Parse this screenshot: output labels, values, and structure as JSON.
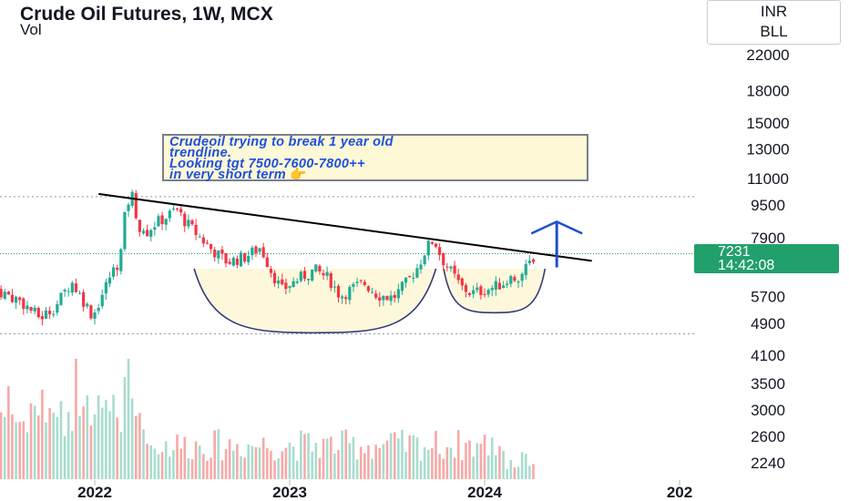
{
  "header": {
    "title": "Crude Oil Futures, 1W, MCX",
    "volume_label": "Vol"
  },
  "corner": {
    "currency": "INR",
    "symbol_box": "BLL"
  },
  "annotation": {
    "lines": [
      "Crudeoil trying to break 1 year old",
      "trendline.",
      "Looking tgt 7500-7600-7800++",
      "in very short term"
    ],
    "emoji": "👉"
  },
  "last_price": {
    "value": "7231",
    "countdown": "14:42:08",
    "color": "#22a06b"
  },
  "colors": {
    "up": "#22ab94",
    "down": "#f23645",
    "vol_up": "#a8dccf",
    "vol_down": "#f7a9a7",
    "trendline": "#000000",
    "cup_fill": "#fdf8dc",
    "cup_stroke": "#353a7a",
    "arrow": "#1f4fd1",
    "dotted": "#9598a1"
  },
  "chart_data": {
    "type": "candlestick",
    "title": "Crude Oil Futures, 1W, MCX",
    "price_axis": {
      "scale": "log",
      "ticks": [
        22000,
        18000,
        15000,
        13000,
        11000,
        9500,
        7900,
        5700,
        4900,
        4100,
        3500,
        3000,
        2600,
        2240
      ]
    },
    "time_axis": {
      "ticks": [
        "2022",
        "2023",
        "2024",
        "202"
      ],
      "tick_x": [
        2022.0,
        2023.0,
        2024.0,
        2025.0
      ]
    },
    "last_price": 7231,
    "horizontal_levels": [
      9950,
      4620
    ],
    "trendline": {
      "from": {
        "x": 2022.02,
        "price": 10100
      },
      "to": {
        "x": 2024.55,
        "price": 6950
      }
    },
    "projection_arrow": {
      "x": 2024.37,
      "from_price": 6700,
      "to_price": 8650
    },
    "patterns": [
      {
        "name": "cup",
        "x_start": 2022.51,
        "x_end": 2023.75,
        "top_price": 6650,
        "bottom_price": 4650
      },
      {
        "name": "handle",
        "x_start": 2023.79,
        "x_end": 2024.31,
        "top_price": 6650,
        "bottom_price": 5200
      }
    ],
    "series": [
      {
        "name": "Crude Oil Futures",
        "key_points": [
          [
            2021.5,
            5900
          ],
          [
            2021.62,
            5550
          ],
          [
            2021.72,
            5050
          ],
          [
            2021.8,
            5400
          ],
          [
            2021.88,
            6200
          ],
          [
            2021.96,
            5400
          ],
          [
            2021.99,
            5100
          ],
          [
            2022.02,
            5500
          ],
          [
            2022.08,
            6400
          ],
          [
            2022.13,
            7000
          ],
          [
            2022.16,
            9400
          ],
          [
            2022.19,
            10100
          ],
          [
            2022.24,
            7900
          ],
          [
            2022.3,
            8500
          ],
          [
            2022.37,
            8900
          ],
          [
            2022.42,
            9300
          ],
          [
            2022.46,
            8700
          ],
          [
            2022.51,
            8200
          ],
          [
            2022.6,
            7400
          ],
          [
            2022.68,
            6900
          ],
          [
            2022.77,
            7100
          ],
          [
            2022.85,
            7500
          ],
          [
            2022.91,
            6500
          ],
          [
            2022.96,
            5900
          ],
          [
            2023.05,
            6300
          ],
          [
            2023.13,
            6600
          ],
          [
            2023.2,
            6300
          ],
          [
            2023.26,
            5700
          ],
          [
            2023.32,
            5950
          ],
          [
            2023.38,
            6150
          ],
          [
            2023.45,
            5750
          ],
          [
            2023.53,
            5650
          ],
          [
            2023.6,
            6150
          ],
          [
            2023.66,
            6750
          ],
          [
            2023.7,
            7450
          ],
          [
            2023.74,
            7850
          ],
          [
            2023.78,
            7050
          ],
          [
            2023.84,
            6400
          ],
          [
            2023.88,
            6000
          ],
          [
            2023.93,
            5800
          ],
          [
            2023.97,
            5850
          ],
          [
            2024.05,
            6000
          ],
          [
            2024.13,
            6250
          ],
          [
            2024.2,
            6500
          ],
          [
            2024.26,
            7231
          ]
        ]
      }
    ],
    "volume": {
      "unit": "relative",
      "notes": "volume histogram below candles; tallest bars near 2021.9 and 2022.17"
    }
  }
}
